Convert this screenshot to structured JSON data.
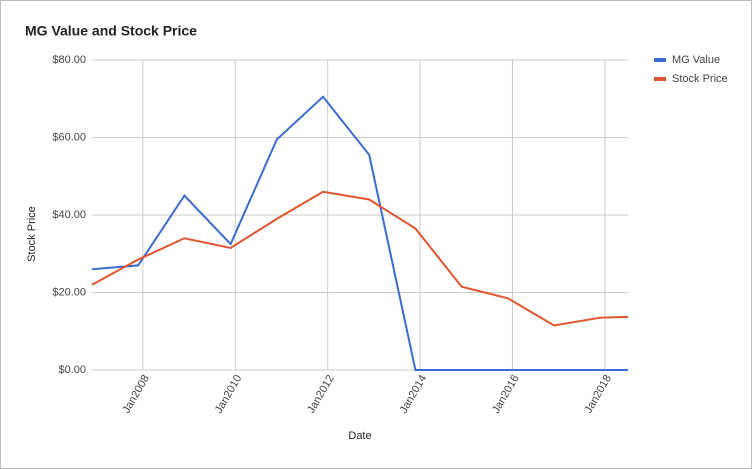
{
  "chart_data": {
    "type": "line",
    "title": "MG Value and Stock Price",
    "x_label": "Date",
    "y_label": "Stock Price",
    "x": [
      2006.9,
      2007.9,
      2008.9,
      2009.9,
      2010.9,
      2011.9,
      2012.9,
      2013.9,
      2014.9,
      2015.9,
      2016.9,
      2017.9,
      2018.5
    ],
    "xlim": [
      2006.9,
      2018.5
    ],
    "xticks": [
      {
        "value": 2008,
        "label": "Jan2008"
      },
      {
        "value": 2010,
        "label": "Jan2010"
      },
      {
        "value": 2012,
        "label": "Jan2012"
      },
      {
        "value": 2014,
        "label": "Jan2014"
      },
      {
        "value": 2016,
        "label": "Jan2016"
      },
      {
        "value": 2018,
        "label": "Jan2018"
      }
    ],
    "ylim": [
      0,
      80
    ],
    "yticks": [
      {
        "value": 0,
        "label": "$0.00"
      },
      {
        "value": 20,
        "label": "$20.00"
      },
      {
        "value": 40,
        "label": "$40.00"
      },
      {
        "value": 60,
        "label": "$60.00"
      },
      {
        "value": 80,
        "label": "$80.00"
      }
    ],
    "grid": true,
    "legend": "right",
    "series": [
      {
        "name": "MG Value",
        "color": "#3c6ccf",
        "values": [
          26,
          27,
          45,
          32.5,
          59.5,
          70.5,
          55.5,
          0,
          0,
          0,
          0,
          0,
          0
        ]
      },
      {
        "name": "Stock Price",
        "color": "#e05530",
        "values": [
          22,
          28.5,
          34,
          31.5,
          39,
          46,
          44,
          36.5,
          21.5,
          18.5,
          11.5,
          13.5,
          13.7
        ]
      }
    ]
  }
}
